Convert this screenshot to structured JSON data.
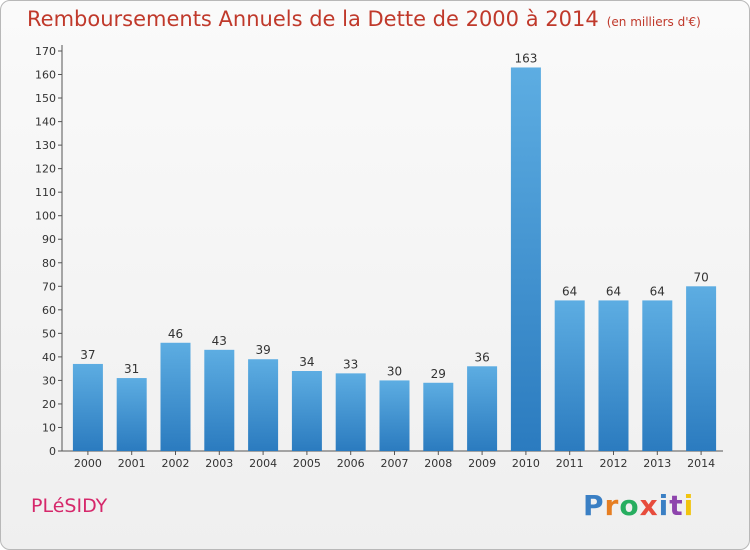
{
  "chart_data": {
    "type": "bar",
    "title": "Remboursements Annuels de la Dette de 2000 à 2014",
    "subtitle": "(en milliers d'€)",
    "categories": [
      "2000",
      "2001",
      "2002",
      "2003",
      "2004",
      "2005",
      "2006",
      "2007",
      "2008",
      "2009",
      "2010",
      "2011",
      "2012",
      "2013",
      "2014"
    ],
    "values": [
      37,
      31,
      46,
      43,
      39,
      34,
      33,
      30,
      29,
      36,
      163,
      64,
      64,
      64,
      70
    ],
    "ylim": [
      0,
      170
    ],
    "ytick_step": 10,
    "grid": false,
    "data_labels": true,
    "colors": {
      "bar_top": "#5dade2",
      "bar_bottom": "#2b7bbf",
      "title": "#c0392b"
    }
  },
  "footer": {
    "commune": "PLéSIDY",
    "brand": "Proxiti",
    "brand_colors": [
      "#3a7fc4",
      "#e67e22",
      "#27ae60",
      "#e74c3c",
      "#3a7fc4",
      "#8e44ad",
      "#f1c40f"
    ]
  }
}
